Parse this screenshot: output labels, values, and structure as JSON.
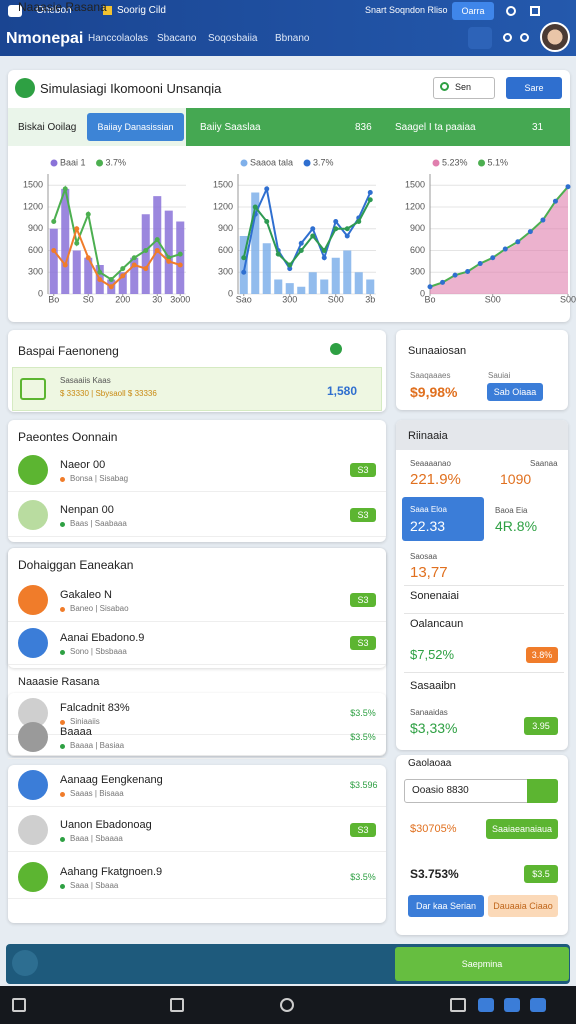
{
  "status_bar": {
    "left": "Onebon",
    "app": "Soorig Cild",
    "center": "Snart Soqndon Rliso",
    "button": "Oarra"
  },
  "header": {
    "title": "Nmonepai",
    "nav": [
      "Hanccolaolas",
      "Sbacano",
      "Soqosbaiia",
      "Bbnano"
    ]
  },
  "sim_card": {
    "title": "Simulasiagi Ikomooni Unsanqia",
    "search": "Sen",
    "button": "Sare",
    "tabs": [
      "Biskai Ooilag",
      "Baiiay Danasissian",
      "Baiiy Saaslaa",
      "836",
      "Saagel I ta paaiaa",
      "31"
    ]
  },
  "chart_data": [
    {
      "type": "bar",
      "x": [
        0,
        1,
        2,
        3,
        4,
        5,
        6,
        7,
        8,
        9,
        10,
        11
      ],
      "xlim": [
        -0.5,
        11.5
      ],
      "ylim": [
        0,
        1600
      ],
      "yticks": [
        0,
        300,
        600,
        900,
        1200,
        1500
      ],
      "xticks": [
        {
          "value": 0,
          "label": "Bo"
        },
        {
          "value": 3,
          "label": "S0"
        },
        {
          "value": 6,
          "label": "200"
        },
        {
          "value": 9,
          "label": "30"
        },
        {
          "value": 11,
          "label": "3o00"
        }
      ],
      "series": [
        {
          "name": "Baai 1",
          "type": "bar",
          "color": "#8a72d8",
          "values": [
            900,
            1450,
            600,
            500,
            400,
            200,
            300,
            500,
            1100,
            1350,
            1150,
            1000
          ]
        },
        {
          "name": "3.7%",
          "type": "line",
          "color": "#4caf50",
          "values": [
            1000,
            1450,
            700,
            1100,
            300,
            200,
            350,
            500,
            600,
            750,
            500,
            550
          ]
        },
        {
          "type": "line",
          "color": "#f07c2a",
          "values": [
            600,
            400,
            900,
            500,
            200,
            100,
            250,
            400,
            350,
            600,
            450,
            400
          ]
        }
      ]
    },
    {
      "type": "bar",
      "x": [
        0,
        1,
        2,
        3,
        4,
        5,
        6,
        7,
        8,
        9,
        10,
        11
      ],
      "xlim": [
        -0.5,
        11.5
      ],
      "ylim": [
        0,
        1600
      ],
      "yticks": [
        0,
        300,
        600,
        900,
        1200,
        1500
      ],
      "xticks": [
        {
          "value": 0,
          "label": "Sao"
        },
        {
          "value": 4,
          "label": "300"
        },
        {
          "value": 8,
          "label": "S00"
        },
        {
          "value": 11,
          "label": "3b"
        }
      ],
      "series": [
        {
          "name": "Saaoa tala",
          "type": "bar",
          "color": "#7fb0ea",
          "values": [
            800,
            1400,
            700,
            200,
            150,
            100,
            300,
            200,
            500,
            600,
            300,
            200
          ]
        },
        {
          "name": "3.7%",
          "type": "line",
          "color": "#2f6fd0",
          "values": [
            300,
            1100,
            1450,
            600,
            350,
            700,
            900,
            500,
            1000,
            800,
            1050,
            1400
          ]
        },
        {
          "type": "line",
          "color": "#2e9a52",
          "values": [
            500,
            1200,
            1000,
            550,
            400,
            600,
            800,
            600,
            900,
            900,
            1000,
            1300
          ]
        }
      ]
    },
    {
      "type": "area",
      "x": [
        0,
        1,
        2,
        3,
        4,
        5,
        6,
        7,
        8,
        9,
        10,
        11
      ],
      "xlim": [
        0,
        11
      ],
      "ylim": [
        0,
        1600
      ],
      "yticks": [
        0,
        300,
        600,
        900,
        1200,
        1500
      ],
      "xticks": [
        {
          "value": 0,
          "label": "Bo"
        },
        {
          "value": 5,
          "label": "S00"
        },
        {
          "value": 11,
          "label": "S00"
        }
      ],
      "series": [
        {
          "name": "5.23%",
          "type": "area",
          "color": "#e07fae",
          "values": [
            100,
            150,
            250,
            300,
            400,
            500,
            600,
            700,
            850,
            1000,
            1300,
            1500
          ]
        },
        {
          "name": "5.1%",
          "type": "line",
          "color": "#4caf50",
          "values": [
            100,
            160,
            260,
            310,
            420,
            500,
            620,
            720,
            860,
            1020,
            1280,
            1480
          ]
        }
      ]
    }
  ],
  "summary": {
    "title": "Baspai Faenoneng",
    "label": "Sasaaiis Kaas",
    "detail": "$ 33330 | Sbysaoll $ 33336",
    "value": "1,580"
  },
  "lists": [
    {
      "title": "Paeontes Oonnain",
      "items": [
        {
          "name": "Naeor 00",
          "meta": "Bonsa | Sisabag",
          "badge": "S3"
        },
        {
          "name": "Nenpan 00",
          "meta": "Baas | Saabaaa",
          "badge": "S3"
        }
      ]
    },
    {
      "title": "Dohaiggan Eaneakan",
      "items": [
        {
          "name": "Gakaleo N",
          "meta": "Baneo | Sisabao",
          "badge": "S3"
        },
        {
          "name": "Aanai Ebadono.9",
          "meta": "Sono | Sbsbaaa",
          "badge": "S3"
        }
      ]
    },
    {
      "title": "Naaasie Rasana",
      "items": [
        {
          "name": "Falcadnit 83%",
          "meta": "Siniaaiis",
          "badge": "$3.5%"
        },
        {
          "name": "Baaaa",
          "meta": "Baaaa | Basiaa",
          "badge": "$3.5%"
        }
      ]
    },
    {
      "items": [
        {
          "name": "Aanaag Eengkenang",
          "meta": "Saaas | Bisaaa",
          "badge": "$3.596"
        },
        {
          "name": "Uanon Ebadonoag",
          "meta": "Baaa | Sbaaaa",
          "badge": "S3"
        },
        {
          "name": "Aahang Fkatgnoen.9",
          "meta": "Saaa | Sbaaa",
          "badge": "$3.5%"
        }
      ]
    }
  ],
  "side": {
    "title": "Sunaaiosan",
    "label": "Saaqaaaes",
    "value": "$9,98%",
    "label2": "Sauiai",
    "button": "Sab Oiaaa"
  },
  "metrics": {
    "title": "Riinaaia",
    "l1": "Seaaaanao",
    "l2": "Saanaa",
    "v1": "221.9%",
    "v2": "1090",
    "tile_label": "Saaa Eloa",
    "tile_value": "22.33",
    "l3": "Baoa Eia",
    "v3": "4R.8%",
    "l4": "Saosaa",
    "v4": "13,77",
    "rows": [
      "Sonenaiai",
      "Oalancaun"
    ],
    "v5": "$7,52%",
    "badge5": "3.8%",
    "row3": "Sasaaibn",
    "l6": "Sanaaidas",
    "v6": "$3,33%",
    "button6": "3.95"
  },
  "form": {
    "title": "Gaolaoaa",
    "input": "Ooasio 8830",
    "v1": "$30705%",
    "button1": "Saaiaeanaiaua",
    "v2": "S3.753%",
    "badge2": "$3.5",
    "button2": "Dar kaa Serian",
    "button3": "Dauaaia Ciaao"
  },
  "footer": {
    "button": "Saepmina"
  }
}
